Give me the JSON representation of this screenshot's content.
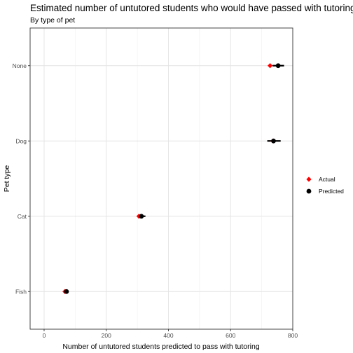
{
  "chart_data": {
    "type": "scatter",
    "title": "Estimated number of untutored students who would have passed with tutoring",
    "subtitle": "By type of pet",
    "xlabel": "Number of untutored students predicted to pass with tutoring",
    "ylabel": "Pet type",
    "xlim": [
      -45,
      800
    ],
    "x_ticks": [
      0,
      200,
      400,
      600,
      800
    ],
    "x_tick_labels": [
      "0",
      "200",
      "400",
      "600",
      "800"
    ],
    "categories": [
      "Fish",
      "Cat",
      "Dog",
      "None"
    ],
    "grid": true,
    "legend_position": "right",
    "series": [
      {
        "name": "Actual",
        "marker": "diamond",
        "color": "#ff0000",
        "values": [
          67,
          305,
          737,
          727
        ]
      },
      {
        "name": "Predicted",
        "marker": "circle",
        "color": "#000000",
        "values": [
          72,
          313,
          738,
          753
        ],
        "error_low": [
          66,
          300,
          718,
          735
        ],
        "error_high": [
          79,
          326,
          761,
          772
        ]
      }
    ]
  }
}
